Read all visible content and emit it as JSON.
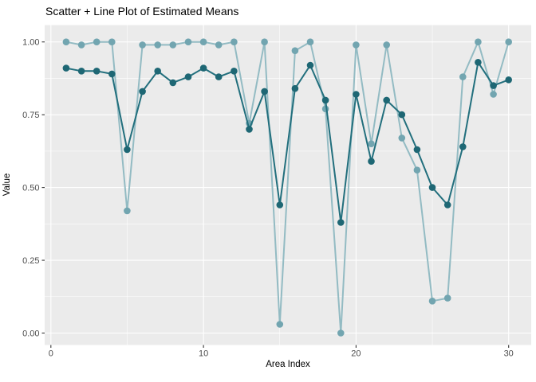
{
  "title": "Scatter + Line Plot of Estimated Means",
  "colors": {
    "figure_bg": "#FFFFFF",
    "panel_bg": "#EBEBEB",
    "grid": "#FFFFFF",
    "tick_mark": "#333333",
    "tick_label": "#4D4D4D",
    "title_text": "#000000",
    "light_series_line": "#93BBC3",
    "light_series_point": "#72A5B0",
    "dark_series_line": "#226F7D",
    "dark_series_point": "#1E6774"
  },
  "chart_data": {
    "type": "line",
    "title": "Scatter + Line Plot of Estimated Means",
    "xlabel": "Area Index",
    "ylabel": "Value",
    "grid": true,
    "legend": "none",
    "x": [
      1,
      2,
      3,
      4,
      5,
      6,
      7,
      8,
      9,
      10,
      11,
      12,
      13,
      14,
      15,
      16,
      17,
      18,
      19,
      20,
      21,
      22,
      23,
      24,
      25,
      26,
      27,
      28,
      29,
      30
    ],
    "series": [
      {
        "name": "light-teal-series",
        "values": [
          1.0,
          0.99,
          1.0,
          1.0,
          0.42,
          0.99,
          0.99,
          0.99,
          1.0,
          1.0,
          0.99,
          1.0,
          0.72,
          1.0,
          0.03,
          0.97,
          1.0,
          0.77,
          0.0,
          0.99,
          0.65,
          0.99,
          0.67,
          0.56,
          0.11,
          0.12,
          0.88,
          1.0,
          0.82,
          1.0
        ]
      },
      {
        "name": "dark-teal-series",
        "values": [
          0.91,
          0.9,
          0.9,
          0.89,
          0.63,
          0.83,
          0.9,
          0.86,
          0.88,
          0.91,
          0.88,
          0.9,
          0.7,
          0.83,
          0.44,
          0.84,
          0.92,
          0.8,
          0.38,
          0.82,
          0.59,
          0.8,
          0.75,
          0.63,
          0.5,
          0.44,
          0.64,
          0.93,
          0.85,
          0.87
        ]
      }
    ],
    "x_axis": {
      "range": [
        -0.45,
        31.45
      ],
      "major_ticks": [
        0,
        10,
        20,
        30
      ],
      "major_tick_labels": [
        "0",
        "10",
        "20",
        "30"
      ],
      "minor_ticks": [
        5,
        15,
        25
      ]
    },
    "y_axis": {
      "range": [
        -0.05,
        1.05
      ],
      "major_ticks": [
        0.0,
        0.25,
        0.5,
        0.75,
        1.0
      ],
      "major_tick_labels": [
        "0.00",
        "0.25",
        "0.50",
        "0.75",
        "1.00"
      ],
      "minor_ticks": [
        0.125,
        0.375,
        0.625,
        0.875
      ]
    }
  }
}
